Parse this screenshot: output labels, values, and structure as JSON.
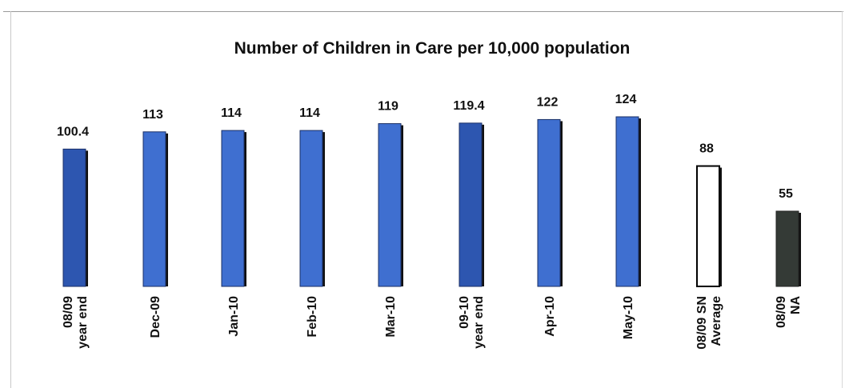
{
  "chart_data": {
    "type": "bar",
    "title": "Number of Children in Care per 10,000 population",
    "xlabel": "",
    "ylabel": "",
    "ylim": [
      0,
      124
    ],
    "grid": false,
    "categories": [
      [
        "08/09",
        "year end"
      ],
      [
        "Dec-09"
      ],
      [
        "Jan-10"
      ],
      [
        "Feb-10"
      ],
      [
        "Mar-10"
      ],
      [
        "09-10",
        "year end"
      ],
      [
        "Apr-10"
      ],
      [
        "May-10"
      ],
      [
        "08/09 SN",
        "Average"
      ],
      [
        "08/09",
        "NA"
      ]
    ],
    "values": [
      100.4,
      113,
      114,
      114,
      119,
      119.4,
      122,
      124,
      88,
      55
    ],
    "value_labels": [
      "100.4",
      "113",
      "114",
      "114",
      "119",
      "119.4",
      "122",
      "124",
      "88",
      "55"
    ],
    "colors": {
      "bar": "#3f6fd0",
      "bar_dark": "#2d56b0",
      "shadow": "#111111",
      "sn_fill": "#ffffff",
      "na_fill": "#343a36"
    },
    "bar_styles": [
      "blue-dark",
      "blue",
      "blue",
      "blue",
      "blue",
      "blue-dark",
      "blue",
      "blue",
      "outline",
      "dark"
    ]
  }
}
